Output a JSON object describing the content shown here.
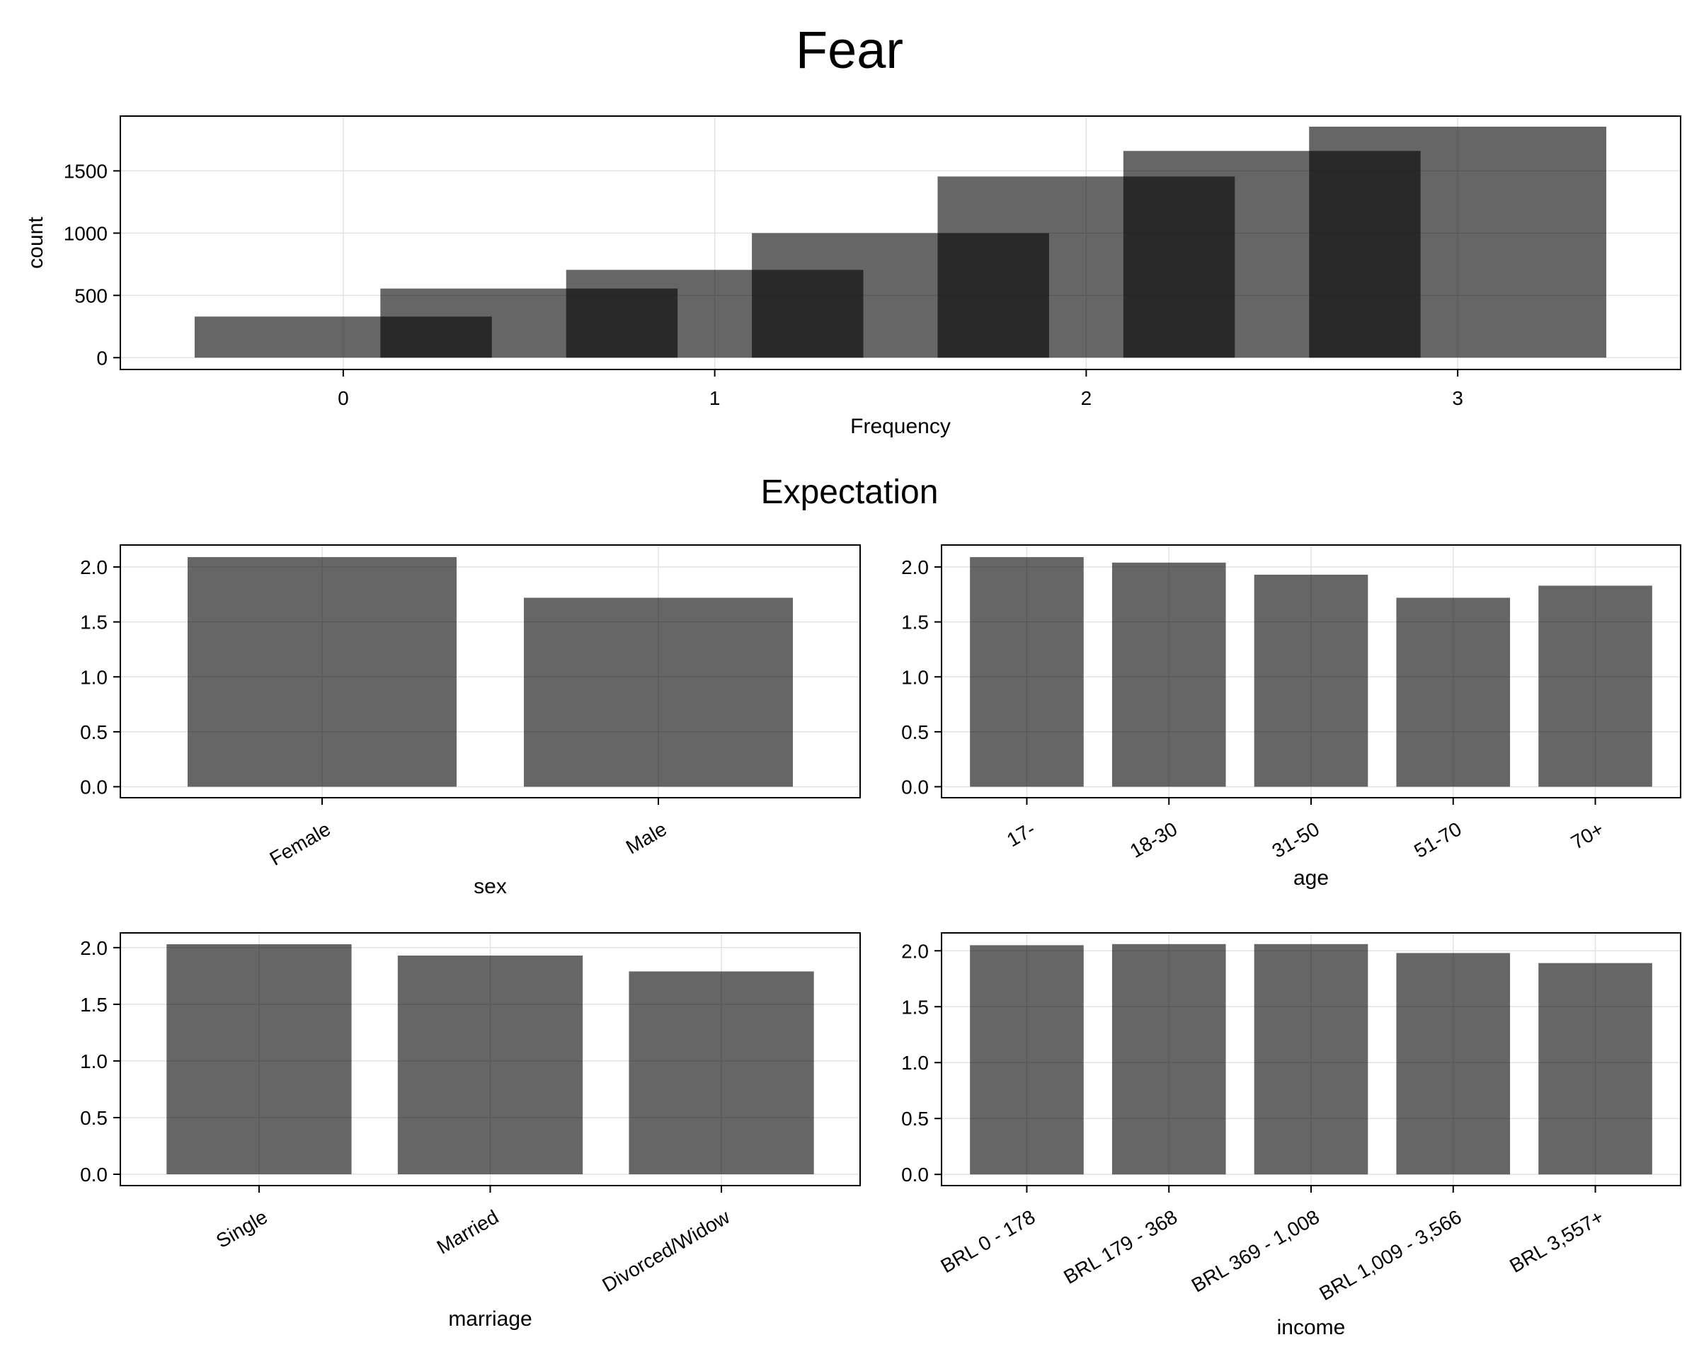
{
  "title": "Fear",
  "subtitle": "Expectation",
  "colors": {
    "bar": "#666666",
    "overlap": "#2a2a2a",
    "grid": "#e3e3e3",
    "frame": "#000000"
  },
  "chart_data": [
    {
      "type": "bar",
      "xlabel": "Frequency",
      "ylabel": "count",
      "xlim": [
        -0.6,
        3.6
      ],
      "ylim": [
        -95,
        1940
      ],
      "xticks": [
        0,
        1,
        2,
        3
      ],
      "yticks": [
        0,
        500,
        1000,
        1500
      ],
      "grid": true,
      "series": [
        {
          "bars": [
            {
              "x0": -0.4,
              "x1": 0.4,
              "value": 330
            },
            {
              "x0": 0.1,
              "x1": 0.9,
              "value": 555
            },
            {
              "x0": 0.6,
              "x1": 1.4,
              "value": 705
            },
            {
              "x0": 1.1,
              "x1": 1.9,
              "value": 1000
            },
            {
              "x0": 1.6,
              "x1": 2.4,
              "value": 1455
            },
            {
              "x0": 2.1,
              "x1": 2.9,
              "value": 1660
            },
            {
              "x0": 2.6,
              "x1": 3.4,
              "value": 1855
            }
          ]
        }
      ]
    },
    {
      "type": "bar",
      "xlabel": "sex",
      "ylabel": "",
      "categories": [
        "Female",
        "Male"
      ],
      "values": [
        2.09,
        1.72
      ],
      "ylim": [
        -0.1,
        2.2
      ],
      "yticks": [
        0.0,
        0.5,
        1.0,
        1.5,
        2.0
      ],
      "ytick_labels": [
        "0.0",
        "0.5",
        "1.0",
        "1.5",
        "2.0"
      ],
      "grid": true
    },
    {
      "type": "bar",
      "xlabel": "age",
      "ylabel": "",
      "categories": [
        "17-",
        "18-30",
        "31-50",
        "51-70",
        "70+"
      ],
      "values": [
        2.09,
        2.04,
        1.93,
        1.72,
        1.83
      ],
      "ylim": [
        -0.1,
        2.2
      ],
      "yticks": [
        0.0,
        0.5,
        1.0,
        1.5,
        2.0
      ],
      "ytick_labels": [
        "0.0",
        "0.5",
        "1.0",
        "1.5",
        "2.0"
      ],
      "grid": true
    },
    {
      "type": "bar",
      "xlabel": "marriage",
      "ylabel": "",
      "categories": [
        "Single",
        "Married",
        "Divorced/Widow"
      ],
      "values": [
        2.03,
        1.93,
        1.79
      ],
      "ylim": [
        -0.1,
        2.13
      ],
      "yticks": [
        0.0,
        0.5,
        1.0,
        1.5,
        2.0
      ],
      "ytick_labels": [
        "0.0",
        "0.5",
        "1.0",
        "1.5",
        "2.0"
      ],
      "grid": true
    },
    {
      "type": "bar",
      "xlabel": "income",
      "ylabel": "",
      "categories": [
        "BRL 0 - 178",
        "BRL 179 - 368",
        "BRL 369 - 1,008",
        "BRL 1,009 - 3,566",
        "BRL 3,557+"
      ],
      "values": [
        2.05,
        2.06,
        2.06,
        1.98,
        1.89
      ],
      "ylim": [
        -0.1,
        2.16
      ],
      "yticks": [
        0.0,
        0.5,
        1.0,
        1.5,
        2.0
      ],
      "ytick_labels": [
        "0.0",
        "0.5",
        "1.0",
        "1.5",
        "2.0"
      ],
      "grid": true
    }
  ]
}
